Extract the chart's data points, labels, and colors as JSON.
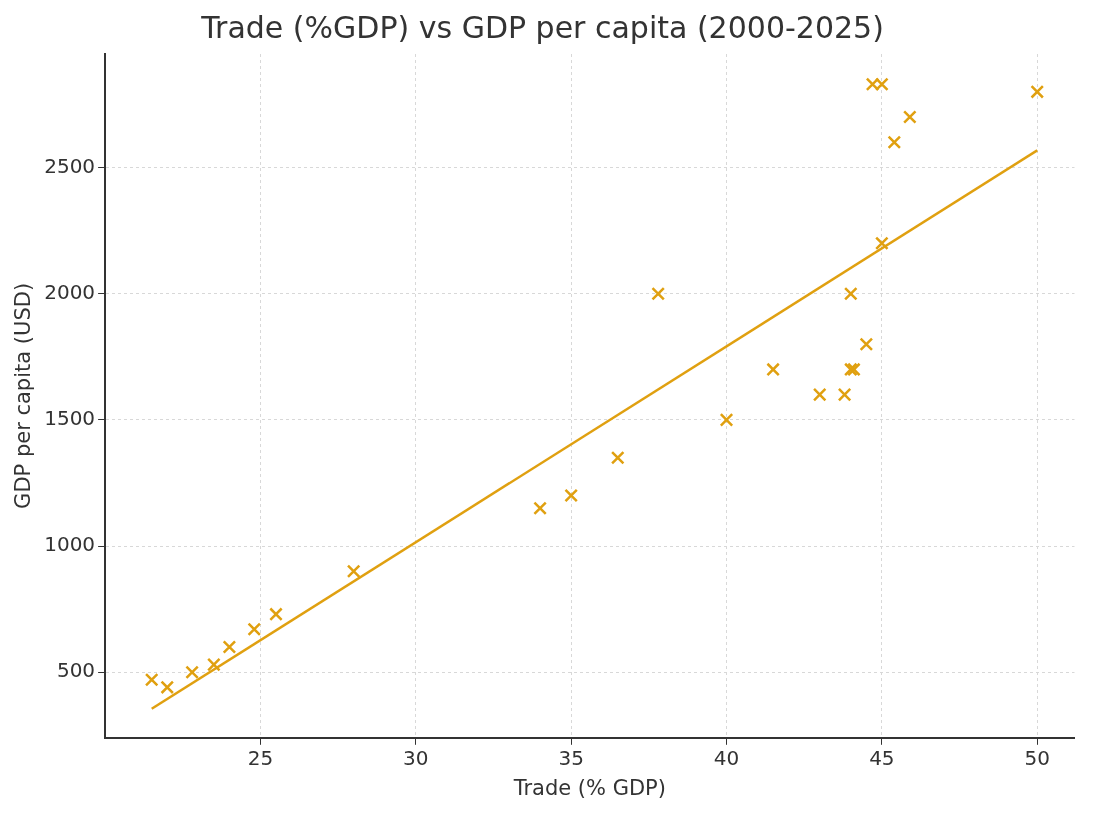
{
  "chart_data": {
    "type": "scatter",
    "title": "Trade (%GDP) vs GDP per capita (2000-2025)",
    "xlabel": "Trade (% GDP)",
    "ylabel": "GDP per capita (USD)",
    "series": [
      {
        "color": "#e0a010",
        "marker": "cross",
        "x": [
          21.5,
          22,
          22.8,
          23.5,
          24,
          24.8,
          25.5,
          28,
          34,
          35,
          36.5,
          37.8,
          40,
          41.5,
          43,
          43.8,
          44,
          44.1,
          44.5,
          44,
          45,
          45.4,
          45.9,
          44.7,
          45,
          50
        ],
        "values": [
          470,
          440,
          500,
          530,
          600,
          670,
          730,
          900,
          1150,
          1200,
          1350,
          2000,
          1500,
          1700,
          1600,
          1600,
          1700,
          1700,
          1800,
          2000,
          2200,
          2600,
          2700,
          2830,
          2830,
          2800
        ]
      },
      {
        "type": "line",
        "color": "#e0a010",
        "marker": "none",
        "line_style": "solid",
        "x": [
          21.5,
          50
        ],
        "values": [
          355,
          2568
        ]
      }
    ],
    "xlim": [
      20,
      51.2
    ],
    "xticks": [
      25,
      30,
      35,
      40,
      45,
      50
    ],
    "ylim": [
      240,
      2950
    ],
    "yticks": [
      500,
      1000,
      1500,
      2000,
      2500
    ],
    "grid": true,
    "legend": false
  }
}
